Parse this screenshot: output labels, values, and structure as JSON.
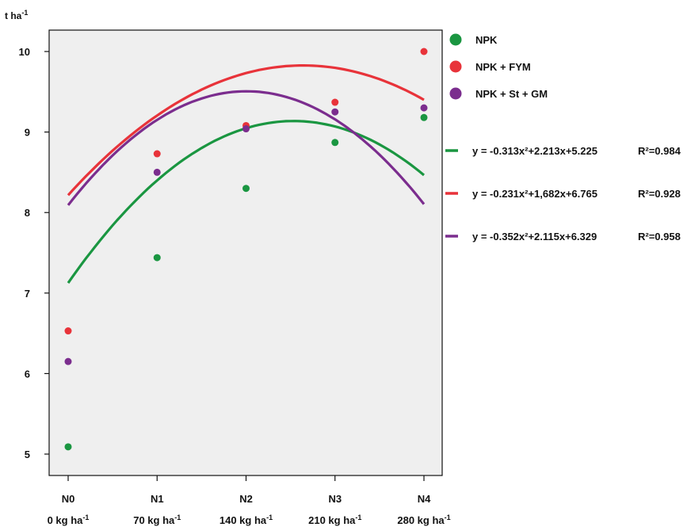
{
  "chart_data": {
    "type": "scatter",
    "ylabel": "t ha",
    "ylabel_sup": "-1",
    "categories": [
      "N0",
      "N1",
      "N2",
      "N3",
      "N4"
    ],
    "category_sublabels": [
      "0 kg ha",
      "70 kg ha",
      "140 kg ha",
      "210 kg ha",
      "280 kg ha"
    ],
    "sublabel_sup": "-1",
    "ylim": [
      4.75,
      10.25
    ],
    "yticks": [
      "5",
      "6",
      "7",
      "8",
      "9",
      "10"
    ],
    "grid": false,
    "legend_position": "right",
    "series": [
      {
        "name": "NPK",
        "color": "#1a9641",
        "values": [
          5.09,
          7.44,
          8.3,
          8.87,
          9.18
        ],
        "fit": {
          "a": -0.313,
          "b": 2.213,
          "c": 5.225
        },
        "eq": "y = -0.313x²+2.213x+5.225",
        "r2": "R²=0.984"
      },
      {
        "name": "NPK + FYM",
        "color": "#e8333a",
        "values": [
          6.53,
          8.73,
          9.08,
          9.37,
          10.0
        ],
        "fit": {
          "a": -0.231,
          "b": 1.682,
          "c": 6.765
        },
        "eq": "y = -0.231x²+1,682x+6.765",
        "r2": "R²=0.928"
      },
      {
        "name": "NPK + St + GM",
        "color": "#7b2d8e",
        "values": [
          6.15,
          8.5,
          9.04,
          9.25,
          9.3
        ],
        "fit": {
          "a": -0.352,
          "b": 2.115,
          "c": 6.329
        },
        "eq": "y = -0.352x²+2.115x+6.329",
        "r2": "R²=0.958"
      }
    ]
  }
}
